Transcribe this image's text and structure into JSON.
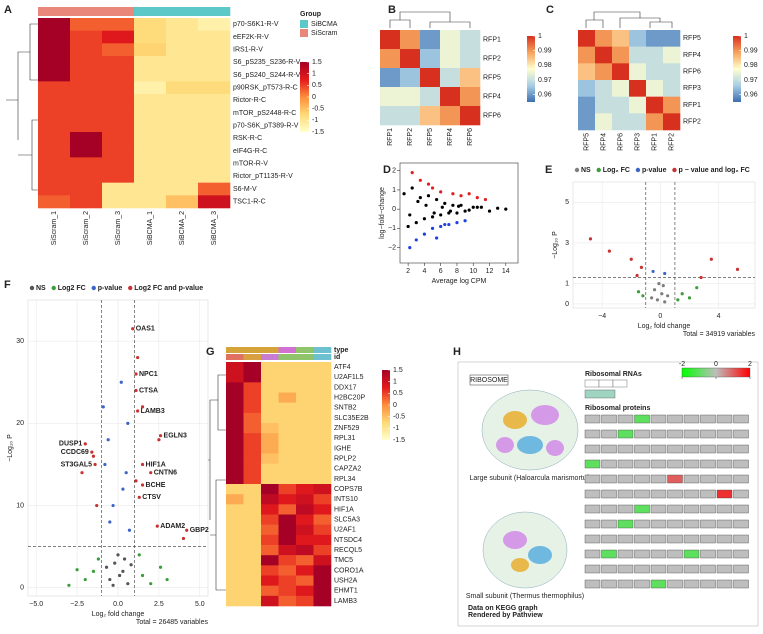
{
  "chart_data": [
    {
      "type": "heatmap",
      "panel": "A",
      "rows": [
        "p70-S6K1-R-V",
        "eEF2K-R-V",
        "IRS1-R-V",
        "S6_pS235_S236-R-V",
        "S6_pS240_S244-R-V",
        "p90RSK_pT573-R-C",
        "Rictor-R-C",
        "mTOR_pS2448-R-C",
        "p70-S6K_pT389-R-V",
        "RSK-R-C",
        "eIF4G-R-C",
        "mTOR-R-V",
        "Rictor_pT1135-R-V",
        "S6-M-V",
        "TSC1-R-C"
      ],
      "columns": [
        "SiScram_1",
        "SiScram_2",
        "SiScram_3",
        "SiBCMA_1",
        "SiBCMA_2",
        "SiBCMA_3"
      ],
      "values": [
        [
          1.5,
          0.3,
          0.3,
          -0.8,
          -1.0,
          -1.2
        ],
        [
          1.5,
          0.5,
          0.8,
          -0.8,
          -1.0,
          -1.0
        ],
        [
          1.5,
          0.5,
          0.3,
          -0.7,
          -1.0,
          -1.0
        ],
        [
          1.5,
          0.5,
          0.5,
          -1.0,
          -1.0,
          -1.0
        ],
        [
          1.5,
          0.5,
          0.5,
          -1.0,
          -1.0,
          -1.0
        ],
        [
          0.5,
          0.5,
          0.5,
          -1.2,
          -0.8,
          -0.8
        ],
        [
          0.5,
          0.5,
          0.5,
          -1.0,
          -1.0,
          -1.0
        ],
        [
          0.5,
          0.5,
          0.5,
          -1.0,
          -1.0,
          -1.0
        ],
        [
          0.5,
          0.5,
          0.5,
          -1.0,
          -1.0,
          -1.0
        ],
        [
          0.5,
          1.5,
          0.5,
          -1.0,
          -1.0,
          -1.0
        ],
        [
          0.5,
          1.5,
          0.5,
          -1.0,
          -1.0,
          -1.0
        ],
        [
          0.5,
          0.5,
          0.5,
          -1.0,
          -1.0,
          -1.0
        ],
        [
          0.5,
          0.5,
          0.5,
          -1.0,
          -1.0,
          -1.0
        ],
        [
          0.5,
          0.5,
          -1.0,
          -1.0,
          -1.0,
          0.3
        ],
        [
          0.3,
          0.5,
          -1.0,
          -1.0,
          -0.5,
          1.0
        ]
      ],
      "colors": [
        "#ffffcc",
        "#fed976",
        "#fd8d3c",
        "#e31a1c",
        "#a50026"
      ],
      "clim": [
        -1.5,
        1.5
      ],
      "cticks": [
        1.5,
        1,
        0.5,
        0,
        -0.5,
        -1,
        -1.5
      ],
      "group_title": "Group",
      "groups": [
        "SiBCMA",
        "SiScram"
      ],
      "group_colors": [
        "#5cc8c8",
        "#e8877a"
      ],
      "column_groups": [
        "SiScram",
        "SiScram",
        "SiScram",
        "SiBCMA",
        "SiBCMA",
        "SiBCMA"
      ]
    },
    {
      "type": "heatmap",
      "panel": "B",
      "rows": [
        "RFP1",
        "RFP2",
        "RFP5",
        "RFP4",
        "RFP6"
      ],
      "columns": [
        "RFP1",
        "RFP2",
        "RFP5",
        "RFP4",
        "RFP6"
      ],
      "values": [
        [
          1,
          0.99,
          0.96,
          0.975,
          0.97
        ],
        [
          0.99,
          1,
          0.965,
          0.975,
          0.97
        ],
        [
          0.96,
          0.965,
          1,
          0.97,
          0.985
        ],
        [
          0.975,
          0.975,
          0.97,
          1,
          0.99
        ],
        [
          0.97,
          0.97,
          0.985,
          0.99,
          1
        ]
      ],
      "colors": [
        "#3d6fb0",
        "#a9cfe5",
        "#fffed0",
        "#f7a35c",
        "#d7301f"
      ],
      "clim": [
        0.955,
        1
      ],
      "cticks": [
        1,
        0.99,
        0.98,
        0.97,
        0.96
      ]
    },
    {
      "type": "heatmap",
      "panel": "C",
      "rows": [
        "RFP5",
        "RFP4",
        "RFP6",
        "RFP3",
        "RFP1",
        "RFP2"
      ],
      "columns": [
        "RFP5",
        "RFP4",
        "RFP6",
        "RFP3",
        "RFP1",
        "RFP2"
      ],
      "values": [
        [
          1,
          0.99,
          0.985,
          0.965,
          0.96,
          0.96
        ],
        [
          0.99,
          1,
          0.99,
          0.97,
          0.97,
          0.975
        ],
        [
          0.985,
          0.99,
          1,
          0.975,
          0.97,
          0.97
        ],
        [
          0.965,
          0.97,
          0.975,
          1,
          0.975,
          0.97
        ],
        [
          0.96,
          0.97,
          0.97,
          0.975,
          1,
          0.99
        ],
        [
          0.96,
          0.975,
          0.97,
          0.97,
          0.99,
          1
        ]
      ],
      "colors": [
        "#3d6fb0",
        "#a9cfe5",
        "#fffed0",
        "#f7a35c",
        "#d7301f"
      ],
      "clim": [
        0.955,
        1
      ],
      "cticks": [
        1,
        0.99,
        0.98,
        0.97,
        0.96
      ]
    },
    {
      "type": "scatter",
      "panel": "D",
      "xlabel": "Average log CPM",
      "ylabel": "log−fold−change",
      "xlim": [
        1,
        15.5
      ],
      "ylim": [
        -2.8,
        2.4
      ],
      "xticks": [
        2,
        4,
        6,
        8,
        10,
        12,
        14
      ],
      "yticks": [
        {
          "value": -2,
          "label": "−2"
        },
        {
          "value": -1,
          "label": "−1"
        },
        0,
        1,
        2
      ],
      "grid": false,
      "series": [
        {
          "color": "#000000",
          "x": [
            1.5,
            2,
            2.5,
            3,
            3.5,
            4,
            4.5,
            5,
            5.5,
            6,
            6.5,
            7,
            7.5,
            8,
            8.5,
            9,
            10,
            11,
            12,
            13,
            14,
            2.2,
            3.2,
            4.2,
            5.2,
            6.2,
            7.2,
            8.2,
            9.5,
            10.5
          ],
          "y": [
            0.8,
            -0.9,
            1.1,
            -0.7,
            0.6,
            -0.5,
            0.7,
            -0.4,
            0.5,
            -0.3,
            0.3,
            -0.2,
            0.2,
            -0.2,
            0.2,
            -0.1,
            0.1,
            0.1,
            -0.1,
            0.05,
            0,
            -0.3,
            0.4,
            0.2,
            -0.2,
            0.1,
            -0.1,
            0.15,
            -0.05,
            0.1
          ]
        },
        {
          "color": "#e02020",
          "x": [
            2.5,
            3.5,
            4.5,
            6,
            7.5,
            8.5,
            9.5,
            10.5,
            11.5,
            5
          ],
          "y": [
            1.9,
            1.5,
            1.3,
            0.9,
            0.8,
            0.7,
            0.8,
            0.6,
            0.5,
            1.1
          ]
        },
        {
          "color": "#2040e0",
          "x": [
            3,
            4,
            5,
            6,
            6.5,
            7,
            8,
            9,
            2.2,
            5.5
          ],
          "y": [
            -1.6,
            -1.3,
            -1.0,
            -0.9,
            -0.8,
            -0.8,
            -0.7,
            -0.6,
            -2.0,
            -1.5
          ]
        }
      ]
    },
    {
      "type": "scatter",
      "panel": "E",
      "xlabel": "Log₂ fold change",
      "ylabel": "−Log₁₀ P",
      "xlim": [
        -6,
        6.5
      ],
      "ylim": [
        -0.2,
        6
      ],
      "xticks": [
        {
          "value": -4,
          "label": "−4"
        },
        0,
        4
      ],
      "yticks": [
        0,
        1,
        3,
        5
      ],
      "grid": true,
      "legend": true,
      "thresholds": {
        "x": [
          -1,
          1
        ],
        "y": 1.3
      },
      "caption": "Total = 34919 variables",
      "series": [
        {
          "name": "NS",
          "color": "#7f7f7f",
          "x": [
            -0.2,
            0.1,
            0.3,
            -0.4,
            0.5,
            -0.6,
            0.2,
            -0.1
          ],
          "y": [
            0.2,
            0.5,
            0.1,
            0.7,
            0.4,
            0.3,
            0.9,
            1.0
          ]
        },
        {
          "name": "Log₂ FC",
          "color": "#3a9e3a",
          "x": [
            1.5,
            2,
            -1.5,
            2.5,
            1.2,
            -1.2
          ],
          "y": [
            0.5,
            0.3,
            0.6,
            0.8,
            0.2,
            0.4
          ]
        },
        {
          "name": "p-value",
          "color": "#3f64c8",
          "x": [
            0.3,
            -0.5
          ],
          "y": [
            1.5,
            1.6
          ]
        },
        {
          "name": "p − value and log₂ FC",
          "color": "#c83232",
          "x": [
            -4.8,
            -3.5,
            -2,
            -1.3,
            3.5,
            5.3,
            -1.6,
            2.8
          ],
          "y": [
            3.2,
            2.6,
            2.2,
            1.8,
            2.2,
            1.7,
            1.4,
            1.3
          ]
        }
      ]
    },
    {
      "type": "scatter",
      "panel": "F",
      "xlabel": "Log₂ fold change",
      "ylabel": "−Log₁₀ P",
      "xlim": [
        -5.5,
        5.5
      ],
      "ylim": [
        -1,
        35
      ],
      "xticks": [
        {
          "value": -5,
          "label": "−5.0"
        },
        {
          "value": -2.5,
          "label": "−2.5"
        },
        {
          "value": 0,
          "label": "0.0"
        },
        2.5,
        {
          "value": 5,
          "label": "5.0"
        }
      ],
      "yticks": [
        0,
        10,
        20,
        30
      ],
      "grid": true,
      "legend": true,
      "thresholds": {
        "x": [
          -1,
          1
        ],
        "y": 5
      },
      "caption": "Total = 26485 variables",
      "series": [
        {
          "name": "NS",
          "color": "#555555",
          "x": [
            -0.5,
            0.3,
            -0.2,
            0.6,
            0,
            -0.7,
            0.4,
            0.1,
            -0.3,
            0.8
          ],
          "y": [
            1,
            2,
            3,
            0.5,
            4,
            2.5,
            3.5,
            1.5,
            0.3,
            2.8
          ]
        },
        {
          "name": "Log2 FC",
          "color": "#3a9e3a",
          "x": [
            -2,
            -1.5,
            1.5,
            2,
            -3,
            3,
            -1.2,
            1.3,
            -2.5,
            2.6
          ],
          "y": [
            1,
            2,
            1.5,
            0.5,
            0.3,
            1,
            3.5,
            4,
            2.2,
            2.5
          ]
        },
        {
          "name": "p-value",
          "color": "#3f64c8",
          "x": [
            -0.5,
            0.3,
            -0.8,
            0.6,
            0.2,
            -0.3,
            0.7,
            -0.6,
            0.5,
            -0.9
          ],
          "y": [
            8,
            12,
            15,
            20,
            25,
            10,
            7,
            18,
            14,
            22
          ]
        },
        {
          "name": "Log2 FC and p-value",
          "color": "#c83232",
          "x": [
            -1.5,
            1.5,
            2.5,
            4,
            -2.2,
            1.2,
            1.1,
            -1.3
          ],
          "y": [
            16,
            22,
            18,
            6,
            14,
            28,
            13,
            10
          ]
        }
      ],
      "labels": [
        {
          "text": "OAS1",
          "x": 0.9,
          "y": 31.5
        },
        {
          "text": "NPC1",
          "x": 1.1,
          "y": 26
        },
        {
          "text": "CTSA",
          "x": 1.1,
          "y": 24
        },
        {
          "text": "LAMB3",
          "x": 1.2,
          "y": 21.5
        },
        {
          "text": "EGLN3",
          "x": 2.6,
          "y": 18.5
        },
        {
          "text": "HIF1A",
          "x": 1.5,
          "y": 15
        },
        {
          "text": "CNTN6",
          "x": 2,
          "y": 14
        },
        {
          "text": "BCHE",
          "x": 1.5,
          "y": 12.5
        },
        {
          "text": "CTSV",
          "x": 1.3,
          "y": 11
        },
        {
          "text": "ADAM2",
          "x": 2.4,
          "y": 7.5
        },
        {
          "text": "GBP2",
          "x": 4.2,
          "y": 7
        },
        {
          "text": "DUSP1",
          "x": -2,
          "y": 17.5
        },
        {
          "text": "CCDC69",
          "x": -1.6,
          "y": 16.5
        },
        {
          "text": "ST3GAL5",
          "x": -1.4,
          "y": 15
        }
      ]
    },
    {
      "type": "heatmap",
      "panel": "G",
      "rows": [
        "ATF4",
        "U2AF1L5",
        "DDX17",
        "H2BC20P",
        "SNTB2",
        "SLC35E2B",
        "ZNF529",
        "RPL31",
        "IGHE",
        "RPLP2",
        "CAPZA2",
        "RPL34",
        "COPS7B",
        "INTS10",
        "HIF1A",
        "SLC5A3",
        "U2AF1",
        "NTSDC4",
        "RECQL5",
        "TMC5",
        "CORO1A",
        "USH2A",
        "EHMT1",
        "LAMB3"
      ],
      "values": [
        [
          1.0,
          1.5,
          -0.7,
          -0.7,
          -0.7,
          -0.7
        ],
        [
          1.0,
          1.5,
          -0.7,
          -0.7,
          -0.7,
          -0.7
        ],
        [
          1.5,
          0.5,
          -0.7,
          -0.7,
          -0.7,
          -0.7
        ],
        [
          1.5,
          0.5,
          -0.7,
          -0.3,
          -0.7,
          -0.7
        ],
        [
          1.5,
          0.5,
          -0.7,
          -0.7,
          -0.7,
          -0.7
        ],
        [
          1.5,
          0.3,
          -0.7,
          -0.7,
          -0.7,
          -0.7
        ],
        [
          1.5,
          0.3,
          -0.5,
          -0.7,
          -0.7,
          -0.7
        ],
        [
          1.5,
          0.5,
          -0.3,
          -0.7,
          -0.7,
          -0.7
        ],
        [
          1.5,
          0.5,
          -0.3,
          -0.7,
          -0.7,
          -0.7
        ],
        [
          1.5,
          0.5,
          -0.5,
          -0.7,
          -0.7,
          -0.7
        ],
        [
          1.5,
          0.5,
          -0.7,
          -0.7,
          -0.7,
          -0.7
        ],
        [
          1.5,
          0.5,
          -0.7,
          -0.7,
          -0.7,
          -0.7
        ],
        [
          -0.7,
          -0.7,
          1.5,
          0.5,
          0.8,
          1.0
        ],
        [
          -0.3,
          -0.7,
          1.2,
          0.8,
          1.0,
          0.5
        ],
        [
          -0.7,
          -0.7,
          0.8,
          0.3,
          1.2,
          0.8
        ],
        [
          -0.7,
          -0.7,
          0.5,
          1.5,
          0.8,
          0.3
        ],
        [
          -0.7,
          -0.7,
          0.3,
          1.5,
          1.0,
          0.5
        ],
        [
          -0.7,
          -0.7,
          0.5,
          1.5,
          0.8,
          0.8
        ],
        [
          -0.7,
          -0.7,
          0.3,
          1.0,
          1.2,
          0.5
        ],
        [
          -0.7,
          -0.7,
          1.5,
          0.5,
          0.3,
          1.0
        ],
        [
          -0.7,
          -0.7,
          0.5,
          0.3,
          0.8,
          1.5
        ],
        [
          -0.7,
          -0.7,
          0.8,
          0.5,
          0.3,
          1.5
        ],
        [
          -0.7,
          -0.7,
          0.3,
          0.5,
          0.8,
          1.5
        ],
        [
          -0.7,
          -0.7,
          1.0,
          0.3,
          0.5,
          1.5
        ]
      ],
      "colors": [
        "#ffffcc",
        "#fed976",
        "#fd8d3c",
        "#e31a1c",
        "#a50026"
      ],
      "clim": [
        -1.5,
        1.5
      ],
      "cticks": [
        1.5,
        1,
        0.5,
        0,
        -0.5,
        -1,
        -1.5
      ],
      "annotation_rows": [
        "type",
        "id"
      ],
      "annotation_colors": [
        [
          "#d4a33a",
          "#d4a33a",
          "#d4a33a",
          "#d070d0",
          "#8fc46a",
          "#6cc0d0"
        ],
        [
          "#e07060",
          "#d8a040",
          "#c77ccf",
          "#8fc46a",
          "#8fc46a",
          "#6cc0d0"
        ]
      ]
    }
  ],
  "pathway_panel": {
    "panel": "H",
    "title": "RIBOSOME",
    "rna_heading": "Ribosomal RNAs",
    "protein_heading": "Ribosomal proteins",
    "large_subunit": "Large subunit (Haloarcula marismortui)",
    "small_subunit": "Small subunit (Thermus thermophilus)",
    "footer": [
      "Data on KEGG graph",
      "Rendered by Pathview"
    ],
    "legend_colors": [
      "#00ff00",
      "#bebebe",
      "#ff0000"
    ],
    "legend_lim": [
      -2,
      2
    ],
    "legend_ticks": [
      -2,
      0,
      2
    ],
    "protein_values": [
      [
        0,
        0,
        0,
        -1,
        0,
        0,
        0,
        0,
        0,
        0
      ],
      [
        0,
        0,
        -1,
        0,
        0,
        0,
        0,
        0,
        0,
        0
      ],
      [
        0,
        0,
        0,
        0,
        0,
        0,
        0,
        0,
        0,
        0
      ],
      [
        -1,
        0,
        0,
        0,
        0,
        0,
        0,
        0,
        0,
        0
      ],
      [
        0,
        0,
        0,
        0,
        0,
        1,
        0,
        0,
        0,
        0
      ],
      [
        0,
        0,
        0,
        0,
        0,
        0,
        0,
        0,
        1.5,
        0
      ],
      [
        0,
        0,
        0,
        -1,
        0,
        0,
        0,
        0,
        0,
        0
      ],
      [
        0,
        0,
        -1,
        0,
        0,
        0,
        0,
        0,
        0,
        0
      ],
      [
        0,
        0,
        0,
        0,
        0,
        0,
        0,
        0,
        0,
        0
      ],
      [
        0,
        -1,
        0,
        0,
        0,
        0,
        -1,
        0,
        0,
        0
      ],
      [
        0,
        0,
        0,
        0,
        0,
        0,
        0,
        0,
        0,
        0
      ],
      [
        0,
        0,
        0,
        0,
        -1,
        0,
        0,
        0,
        0,
        0
      ]
    ]
  }
}
